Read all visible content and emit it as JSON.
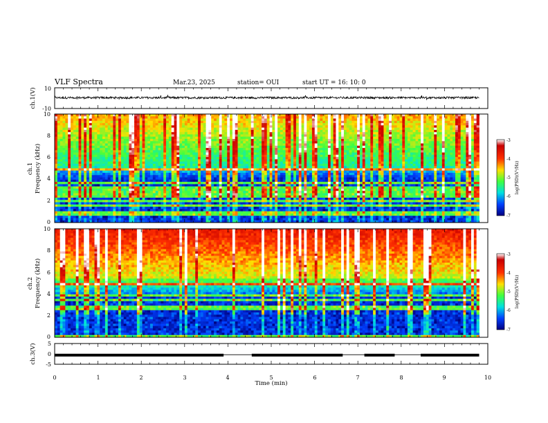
{
  "header": {
    "title": "VLF Spectra",
    "date": "Mar.23, 2025",
    "station": "station= OUI",
    "start": "start  UT =   16: 10: 0"
  },
  "chart_data": [
    {
      "type": "line",
      "name": "ch1-waveform",
      "ylabel": "ch.1(V)",
      "ylim": [
        -10,
        10
      ],
      "y_ticks": [
        "10",
        "-10"
      ],
      "x_range_min": [
        0,
        10
      ],
      "approx_level": 0.4,
      "approx_noise_amplitude": 1.0
    },
    {
      "type": "heatmap",
      "name": "ch1-spectrogram",
      "ylabel_line1": "ch.1",
      "ylabel_line2": "Frequency (kHz)",
      "ylim": [
        0,
        10
      ],
      "y_ticks": [
        "0",
        "2",
        "4",
        "6",
        "8",
        "10"
      ],
      "x_range_min": [
        0,
        9.8
      ],
      "colorbar": {
        "label": "log(PSD)(V²/Hz)",
        "range": [
          -7,
          -3
        ],
        "ticks": [
          "-3",
          "-4",
          "-5",
          "-6",
          "-7"
        ]
      }
    },
    {
      "type": "heatmap",
      "name": "ch2-spectrogram",
      "ylabel_line1": "ch.2",
      "ylabel_line2": "Frequency (kHz)",
      "ylim": [
        0,
        10
      ],
      "y_ticks": [
        "0",
        "2",
        "4",
        "6",
        "8",
        "10"
      ],
      "x_range_min": [
        0,
        9.8
      ],
      "colorbar": {
        "label": "log(PSD)(V²/Hz)",
        "range": [
          -7,
          -3
        ],
        "ticks": [
          "-3",
          "-4",
          "-5",
          "-6",
          "-7"
        ]
      }
    },
    {
      "type": "line",
      "name": "ch3-waveform",
      "ylabel": "ch.3(V)",
      "ylim": [
        -5,
        5
      ],
      "y_ticks": [
        "5",
        "0",
        "-5"
      ],
      "segments_min": [
        [
          0,
          3.9
        ],
        [
          4.55,
          6.65
        ],
        [
          7.15,
          7.85
        ],
        [
          8.45,
          9.8
        ]
      ],
      "segment_level": -0.6,
      "gap_level": -0.4
    }
  ],
  "x_axis": {
    "label": "Time (min)",
    "ticks": [
      "0",
      "1",
      "2",
      "3",
      "4",
      "5",
      "6",
      "7",
      "8",
      "9",
      "10"
    ],
    "range": [
      0,
      10
    ]
  },
  "colors": {
    "low": "#00008b",
    "high": "#c80000"
  }
}
